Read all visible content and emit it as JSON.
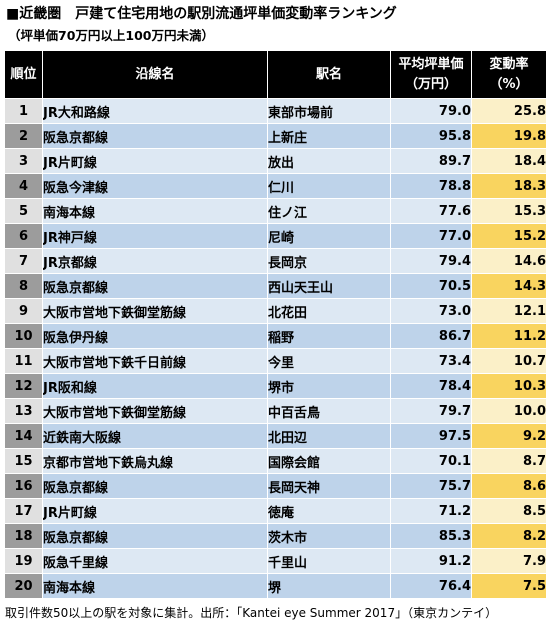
{
  "header": {
    "title": "■近畿圏　戸建て住宅用地の駅別流通坪単価変動率ランキング",
    "subtitle": "（坪単価70万円以上100万円未満）"
  },
  "table": {
    "columns": {
      "rank": "順位",
      "line": "沿線名",
      "station": "駅名",
      "price_line1": "平均坪単価",
      "price_line2": "（万円）",
      "rate_line1": "変動率",
      "rate_line2": "（%）"
    },
    "rows": [
      {
        "rank": "1",
        "line": "JR大和路線",
        "station": "東部市場前",
        "price": "79.0",
        "rate": "25.8"
      },
      {
        "rank": "2",
        "line": "阪急京都線",
        "station": "上新庄",
        "price": "95.8",
        "rate": "19.8"
      },
      {
        "rank": "3",
        "line": "JR片町線",
        "station": "放出",
        "price": "89.7",
        "rate": "18.4"
      },
      {
        "rank": "4",
        "line": "阪急今津線",
        "station": "仁川",
        "price": "78.8",
        "rate": "18.3"
      },
      {
        "rank": "5",
        "line": "南海本線",
        "station": "住ノ江",
        "price": "77.6",
        "rate": "15.3"
      },
      {
        "rank": "6",
        "line": "JR神戸線",
        "station": "尼崎",
        "price": "77.0",
        "rate": "15.2"
      },
      {
        "rank": "7",
        "line": "JR京都線",
        "station": "長岡京",
        "price": "79.4",
        "rate": "14.6"
      },
      {
        "rank": "8",
        "line": "阪急京都線",
        "station": "西山天王山",
        "price": "70.5",
        "rate": "14.3"
      },
      {
        "rank": "9",
        "line": "大阪市営地下鉄御堂筋線",
        "station": "北花田",
        "price": "73.0",
        "rate": "12.1"
      },
      {
        "rank": "10",
        "line": "阪急伊丹線",
        "station": "稲野",
        "price": "86.7",
        "rate": "11.2"
      },
      {
        "rank": "11",
        "line": "大阪市営地下鉄千日前線",
        "station": "今里",
        "price": "73.4",
        "rate": "10.7"
      },
      {
        "rank": "12",
        "line": "JR阪和線",
        "station": "堺市",
        "price": "78.4",
        "rate": "10.3"
      },
      {
        "rank": "13",
        "line": "大阪市営地下鉄御堂筋線",
        "station": "中百舌鳥",
        "price": "79.7",
        "rate": "10.0"
      },
      {
        "rank": "14",
        "line": "近鉄南大阪線",
        "station": "北田辺",
        "price": "97.5",
        "rate": "9.2"
      },
      {
        "rank": "15",
        "line": "京都市営地下鉄烏丸線",
        "station": "国際会館",
        "price": "70.1",
        "rate": "8.7"
      },
      {
        "rank": "16",
        "line": "阪急京都線",
        "station": "長岡天神",
        "price": "75.7",
        "rate": "8.6"
      },
      {
        "rank": "17",
        "line": "JR片町線",
        "station": "徳庵",
        "price": "71.2",
        "rate": "8.5"
      },
      {
        "rank": "18",
        "line": "阪急京都線",
        "station": "茨木市",
        "price": "85.3",
        "rate": "8.2"
      },
      {
        "rank": "19",
        "line": "阪急千里線",
        "station": "千里山",
        "price": "91.2",
        "rate": "7.9"
      },
      {
        "rank": "20",
        "line": "南海本線",
        "station": "堺",
        "price": "76.4",
        "rate": "7.5"
      }
    ]
  },
  "footer": {
    "note": "取引件数50以上の駅を対象に集計。出所：「Kantei eye Summer 2017」（東京カンテイ）"
  },
  "colors": {
    "header_bg": "#000000",
    "rank_odd": "#e0e0e0",
    "rank_even": "#9c9c9c",
    "body_odd": "#dde8f3",
    "body_even": "#bed3ea",
    "rate_odd": "#fbf0c8",
    "rate_even": "#f9d45f"
  }
}
